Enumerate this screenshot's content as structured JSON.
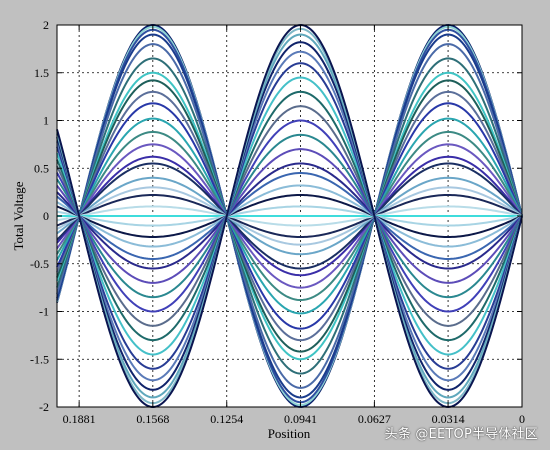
{
  "chart_data": {
    "type": "line",
    "title": "",
    "xlabel": "Position",
    "ylabel": "Total Voltage",
    "x_reversed": true,
    "xlim": [
      0.1975,
      0
    ],
    "ylim": [
      -2,
      2
    ],
    "grid": true,
    "x_ticks": [
      0.1881,
      0.1568,
      0.1254,
      0.0941,
      0.0627,
      0.0314,
      0
    ],
    "x_tick_labels": [
      "0.1881",
      "0.1568",
      "0.1254",
      "0.0941",
      "0.0627",
      "0.0314",
      "0"
    ],
    "y_ticks": [
      -2,
      -1.5,
      -1,
      -0.5,
      0,
      0.5,
      1,
      1.5,
      2
    ],
    "y_tick_labels": [
      "-2",
      "-1.5",
      "-1",
      "-0.5",
      "0",
      "0.5",
      "1",
      "1.5",
      "2"
    ],
    "standing_wave": {
      "node_positions": [
        0,
        0.0627,
        0.1254,
        0.1881
      ],
      "wavelength": 0.1254
    },
    "series": [
      {
        "amplitude": 2.0,
        "color": "#0a1f6b"
      },
      {
        "amplitude": 1.98,
        "color": "#8fd3d3"
      },
      {
        "amplitude": 1.95,
        "color": "#2e4fa0"
      },
      {
        "amplitude": 1.9,
        "color": "#1a3c8c"
      },
      {
        "amplitude": 1.8,
        "color": "#4a6aa8"
      },
      {
        "amplitude": 1.65,
        "color": "#2e6f78"
      },
      {
        "amplitude": 1.5,
        "color": "#3fc4c4"
      },
      {
        "amplitude": 1.42,
        "color": "#1e5f5a"
      },
      {
        "amplitude": 1.3,
        "color": "#5b6f9a"
      },
      {
        "amplitude": 1.18,
        "color": "#2838a8"
      },
      {
        "amplitude": 1.02,
        "color": "#2aa6b0"
      },
      {
        "amplitude": 0.88,
        "color": "#3c8a84"
      },
      {
        "amplitude": 0.75,
        "color": "#6a58c0"
      },
      {
        "amplitude": 0.62,
        "color": "#3a2ea8"
      },
      {
        "amplitude": 0.55,
        "color": "#1b2f63"
      },
      {
        "amplitude": 0.4,
        "color": "#6aa6c8"
      },
      {
        "amplitude": 0.3,
        "color": "#a8c8e0"
      },
      {
        "amplitude": 0.22,
        "color": "#1a2858"
      },
      {
        "amplitude": 0.1,
        "color": "#b8dce8"
      },
      {
        "amplitude": 0.0,
        "color": "#3fdcdc"
      },
      {
        "amplitude": -0.1,
        "color": "#a8d4e4"
      },
      {
        "amplitude": -0.22,
        "color": "#0c1848"
      },
      {
        "amplitude": -0.32,
        "color": "#8bbcd8"
      },
      {
        "amplitude": -0.45,
        "color": "#3a66b0"
      },
      {
        "amplitude": -0.55,
        "color": "#2a2a8c"
      },
      {
        "amplitude": -0.7,
        "color": "#5c4cb8"
      },
      {
        "amplitude": -0.85,
        "color": "#2a8890"
      },
      {
        "amplitude": -1.0,
        "color": "#4040b8"
      },
      {
        "amplitude": -1.15,
        "color": "#5a6c8c"
      },
      {
        "amplitude": -1.3,
        "color": "#1e6a6a"
      },
      {
        "amplitude": -1.45,
        "color": "#44c0c8"
      },
      {
        "amplitude": -1.6,
        "color": "#283c94"
      },
      {
        "amplitude": -1.72,
        "color": "#5a7ab8"
      },
      {
        "amplitude": -1.82,
        "color": "#10236a"
      },
      {
        "amplitude": -1.9,
        "color": "#5fa8bc"
      },
      {
        "amplitude": -1.96,
        "color": "#7fb8c8"
      },
      {
        "amplitude": -2.0,
        "color": "#0a1550"
      }
    ]
  },
  "watermark": {
    "text": "头条 @EETOP半导体社区"
  },
  "colors": {
    "figure_background": "#c0c0c0",
    "plot_background": "#ffffff"
  }
}
